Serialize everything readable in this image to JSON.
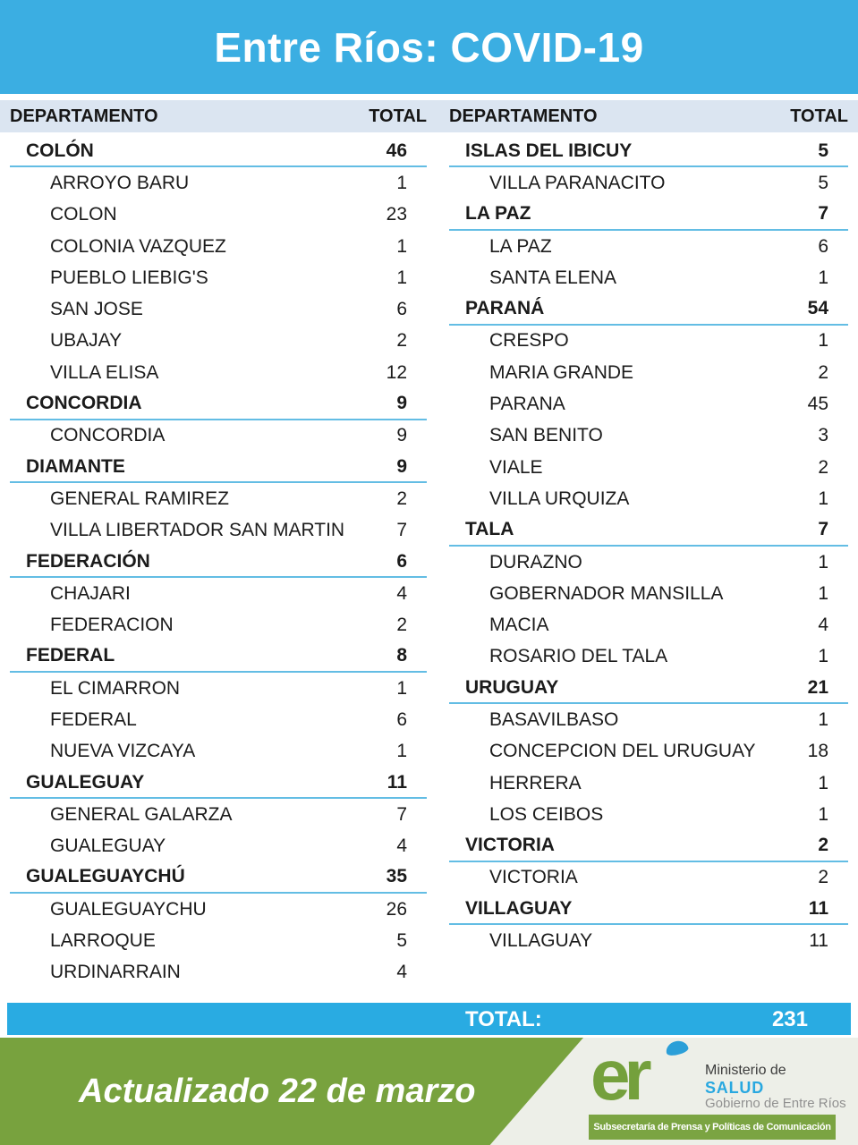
{
  "title": "Entre Ríos: COVID-19",
  "total_bar": {
    "label": "TOTAL:",
    "value": "231"
  },
  "footer": {
    "updated": "Actualizado 22 de marzo",
    "logo_text": "er",
    "ministry_line1": "Ministerio de",
    "ministry_line2": "SALUD",
    "ministry_line3": "Gobierno de Entre Ríos",
    "subsecretaria": "Subsecretaría de Prensa y Políticas de Comunicación"
  },
  "colors": {
    "banner_blue": "#3BAEE2",
    "total_bar_blue": "#29ABE2",
    "header_row_bg": "#DBE5F1",
    "underline_blue": "#63BDE4",
    "green": "#78A23E",
    "footer_bg": "#EDEFE8",
    "salud_blue": "#29A8E0"
  },
  "chart_data": {
    "type": "table",
    "title": "Entre Ríos: COVID-19",
    "columns": [
      "DEPARTAMENTO",
      "TOTAL"
    ],
    "grand_total": 231,
    "updated": "Actualizado 22 de marzo",
    "sections_left": [
      {
        "department": "COLÓN",
        "total": 46,
        "municipalities": [
          {
            "name": "ARROYO BARU",
            "cases": 1
          },
          {
            "name": "COLON",
            "cases": 23
          },
          {
            "name": "COLONIA VAZQUEZ",
            "cases": 1
          },
          {
            "name": "PUEBLO LIEBIG'S",
            "cases": 1
          },
          {
            "name": "SAN JOSE",
            "cases": 6
          },
          {
            "name": "UBAJAY",
            "cases": 2
          },
          {
            "name": "VILLA ELISA",
            "cases": 12
          }
        ]
      },
      {
        "department": "CONCORDIA",
        "total": 9,
        "municipalities": [
          {
            "name": "CONCORDIA",
            "cases": 9
          }
        ]
      },
      {
        "department": "DIAMANTE",
        "total": 9,
        "municipalities": [
          {
            "name": "GENERAL RAMIREZ",
            "cases": 2
          },
          {
            "name": "VILLA LIBERTADOR SAN MARTIN",
            "cases": 7
          }
        ]
      },
      {
        "department": "FEDERACIÓN",
        "total": 6,
        "municipalities": [
          {
            "name": "CHAJARI",
            "cases": 4
          },
          {
            "name": "FEDERACION",
            "cases": 2
          }
        ]
      },
      {
        "department": "FEDERAL",
        "total": 8,
        "municipalities": [
          {
            "name": "EL CIMARRON",
            "cases": 1
          },
          {
            "name": "FEDERAL",
            "cases": 6
          },
          {
            "name": "NUEVA VIZCAYA",
            "cases": 1
          }
        ]
      },
      {
        "department": "GUALEGUAY",
        "total": 11,
        "municipalities": [
          {
            "name": "GENERAL GALARZA",
            "cases": 7
          },
          {
            "name": "GUALEGUAY",
            "cases": 4
          }
        ]
      },
      {
        "department": "GUALEGUAYCHÚ",
        "total": 35,
        "municipalities": [
          {
            "name": "GUALEGUAYCHU",
            "cases": 26
          },
          {
            "name": "LARROQUE",
            "cases": 5
          },
          {
            "name": "URDINARRAIN",
            "cases": 4
          }
        ]
      }
    ],
    "sections_right": [
      {
        "department": "ISLAS DEL IBICUY",
        "total": 5,
        "municipalities": [
          {
            "name": "VILLA PARANACITO",
            "cases": 5
          }
        ]
      },
      {
        "department": "LA PAZ",
        "total": 7,
        "municipalities": [
          {
            "name": "LA PAZ",
            "cases": 6
          },
          {
            "name": "SANTA ELENA",
            "cases": 1
          }
        ]
      },
      {
        "department": "PARANÁ",
        "total": 54,
        "municipalities": [
          {
            "name": "CRESPO",
            "cases": 1
          },
          {
            "name": "MARIA GRANDE",
            "cases": 2
          },
          {
            "name": "PARANA",
            "cases": 45
          },
          {
            "name": "SAN BENITO",
            "cases": 3
          },
          {
            "name": "VIALE",
            "cases": 2
          },
          {
            "name": "VILLA URQUIZA",
            "cases": 1
          }
        ]
      },
      {
        "department": "TALA",
        "total": 7,
        "municipalities": [
          {
            "name": "DURAZNO",
            "cases": 1
          },
          {
            "name": "GOBERNADOR MANSILLA",
            "cases": 1
          },
          {
            "name": "MACIA",
            "cases": 4
          },
          {
            "name": "ROSARIO DEL TALA",
            "cases": 1
          }
        ]
      },
      {
        "department": "URUGUAY",
        "total": 21,
        "municipalities": [
          {
            "name": "BASAVILBASO",
            "cases": 1
          },
          {
            "name": "CONCEPCION DEL URUGUAY",
            "cases": 18
          },
          {
            "name": "HERRERA",
            "cases": 1
          },
          {
            "name": "LOS CEIBOS",
            "cases": 1
          }
        ]
      },
      {
        "department": "VICTORIA",
        "total": 2,
        "municipalities": [
          {
            "name": "VICTORIA",
            "cases": 2
          }
        ]
      },
      {
        "department": "VILLAGUAY",
        "total": 11,
        "municipalities": [
          {
            "name": "VILLAGUAY",
            "cases": 11
          }
        ]
      }
    ]
  }
}
